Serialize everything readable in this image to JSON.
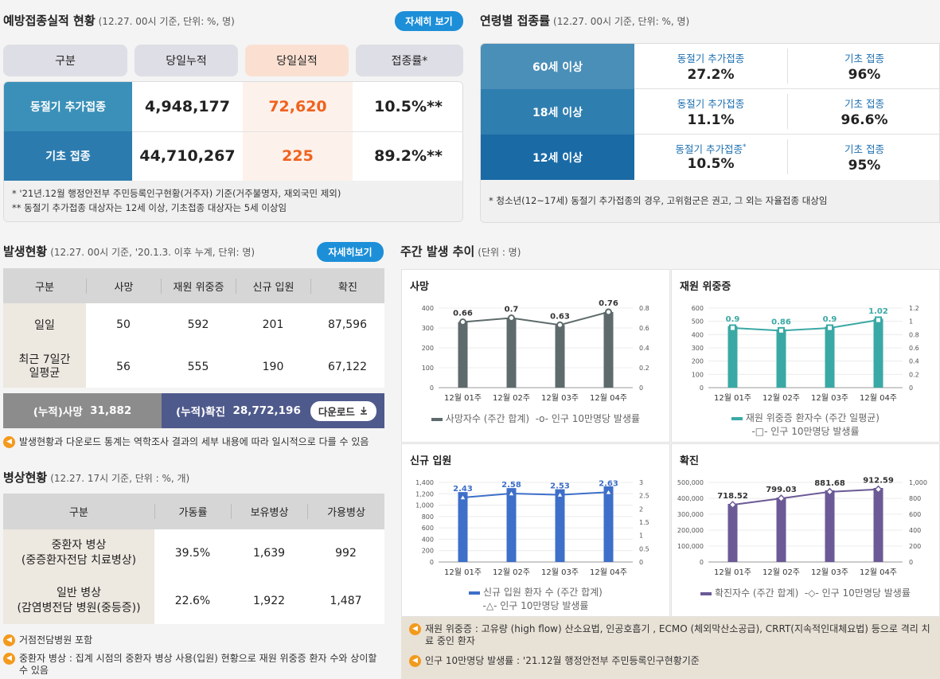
{
  "vacc": {
    "title": "예방접종실적 현황",
    "sub": "(12.27. 00시 기준, 단위: %, 명)",
    "detail_btn": "자세히 보기",
    "headers": [
      "구분",
      "당일누적",
      "당일실적",
      "접종률*"
    ],
    "rows": [
      {
        "label": "동절기 추가접종",
        "cum": "4,948,177",
        "today": "72,620",
        "rate": "10.5%**"
      },
      {
        "label": "기초 접종",
        "cum": "44,710,267",
        "today": "225",
        "rate": "89.2%**"
      }
    ],
    "notes": [
      "* '21년.12월 행정안전부 주민등록인구현황(거주자) 기준(거주불명자, 재외국민 제외)",
      "** 동절기 추가접종 대상자는 12세 이상, 기초접종 대상자는 5세 이상임"
    ]
  },
  "age": {
    "title": "연령별 접종률",
    "sub": "(12.27. 00시 기준, 단위: %, 명)",
    "rows": [
      {
        "label": "60세 이상",
        "a_label": "동절기 추가접종",
        "a_val": "27.2%",
        "b_label": "기초 접종",
        "b_val": "96%"
      },
      {
        "label": "18세 이상",
        "a_label": "동절기 추가접종",
        "a_val": "11.1%",
        "b_label": "기초 접종",
        "b_val": "96.6%"
      },
      {
        "label": "12세 이상",
        "a_label": "동절기 추가접종",
        "a_val": "10.5%",
        "b_label": "기초 접종",
        "b_val": "95%"
      }
    ],
    "star": "*",
    "note": "* 청소년(12~17세) 동절기 추가접종의 경우, 고위험군은 권고, 그 외는 자율접종 대상임"
  },
  "occur": {
    "title": "발생현황",
    "sub": "(12.27. 00시 기준, '20.1.3. 이후 누계, 단위: 명)",
    "detail_btn": "자세히보기",
    "headers": [
      "구분",
      "사망",
      "재원 위중증",
      "신규 입원",
      "확진"
    ],
    "rows": [
      {
        "label": "일일",
        "death": "50",
        "severe": "592",
        "adm": "201",
        "conf": "87,596"
      },
      {
        "label": "최근 7일간\n일평균",
        "death": "56",
        "severe": "555",
        "adm": "190",
        "conf": "67,122"
      }
    ],
    "cum_death_label": "(누적)사망",
    "cum_death": "31,882",
    "cum_conf_label": "(누적)확진",
    "cum_conf": "28,772,196",
    "download": "다운로드",
    "note": "발생현황과 다운로드 통계는 역학조사 결과의 세부 내용에 따라 일시적으로 다를 수 있음"
  },
  "bed": {
    "title": "병상현황",
    "sub": "(12.27. 17시 기준, 단위 : %, 개)",
    "headers": [
      "구분",
      "가동률",
      "보유병상",
      "가용병상"
    ],
    "rows": [
      {
        "label": "중환자 병상\n(중증환자전담 치료병상)",
        "rate": "39.5%",
        "own": "1,639",
        "avail": "992"
      },
      {
        "label": "일반 병상\n(감염병전담 병원(중등증))",
        "rate": "22.6%",
        "own": "1,922",
        "avail": "1,487"
      }
    ],
    "notes": [
      "거점전담병원 포함",
      "중환자 병상 : 집계 시점의 중환자 병상 사용(입원) 현황으로 재원 위중증 환자 수와 상이할 수 있음"
    ]
  },
  "weekly": {
    "title": "주간 발생 추이",
    "sub": "(단위 : 명)",
    "notes": [
      "재원 위중증 : 고유량 (high flow) 산소요법, 인공호흡기 , ECMO (체외막산소공급), CRRT(지속적인대체요법) 등으로 격리 치료 중인 환자",
      "인구 10만명당 발생률 : '21.12월 행정안전부 주민등록인구현황기준"
    ]
  },
  "chart_data": [
    {
      "type": "bar",
      "title": "사망",
      "categories": [
        "12월 01주",
        "12월 02주",
        "12월 03주",
        "12월 04주"
      ],
      "series": [
        {
          "name": "사망자수 (주간 합계)",
          "values": [
            330,
            350,
            315,
            380
          ]
        },
        {
          "name": "인구 10만명당 발생률",
          "values": [
            0.66,
            0.7,
            0.63,
            0.76
          ]
        }
      ],
      "yticks": [
        "400",
        "300",
        "200",
        "100",
        "0"
      ],
      "y2ticks": [
        "0.8",
        "0.6",
        "0.4",
        "0.2",
        "0"
      ],
      "ylim": [
        0,
        400
      ],
      "y2lim": [
        0,
        0.8
      ],
      "color": "#5e6a6b"
    },
    {
      "type": "bar",
      "title": "재원 위중증",
      "categories": [
        "12월 01주",
        "12월 02주",
        "12월 03주",
        "12월 04주"
      ],
      "series": [
        {
          "name": "재원 위중증 환자수 (주간 일평균)",
          "values": [
            465,
            440,
            460,
            520
          ]
        },
        {
          "name": "인구 10만명당 발생률",
          "values": [
            0.9,
            0.86,
            0.9,
            1.02
          ]
        }
      ],
      "yticks": [
        "600",
        "500",
        "400",
        "300",
        "200",
        "100",
        "0"
      ],
      "y2ticks": [
        "1.2",
        "1",
        "0.8",
        "0.6",
        "0.4",
        "0.2",
        "0"
      ],
      "ylim": [
        0,
        600
      ],
      "y2lim": [
        0,
        1.2
      ],
      "color": "#3aa9a5"
    },
    {
      "type": "bar",
      "title": "신규 입원",
      "categories": [
        "12월 01주",
        "12월 02주",
        "12월 03주",
        "12월 04주"
      ],
      "series": [
        {
          "name": "신규 입원 환자 수 (주간 합계)",
          "values": [
            1230,
            1300,
            1280,
            1330
          ]
        },
        {
          "name": "인구 10만명당 발생률",
          "values": [
            2.43,
            2.58,
            2.53,
            2.63
          ]
        }
      ],
      "yticks": [
        "1,400",
        "1,200",
        "1,000",
        "800",
        "600",
        "400",
        "200",
        "0"
      ],
      "y2ticks": [
        "3",
        "2.5",
        "2",
        "1.5",
        "1",
        "0.5",
        "0"
      ],
      "ylim": [
        0,
        1400
      ],
      "y2lim": [
        0,
        3
      ],
      "color": "#3e6fc9"
    },
    {
      "type": "bar",
      "title": "확진",
      "categories": [
        "12월 01주",
        "12월 02주",
        "12월 03주",
        "12월 04주"
      ],
      "series": [
        {
          "name": "확진자수 (주간 합계)",
          "values": [
            365000,
            405000,
            450000,
            465000
          ]
        },
        {
          "name": "인구 10만명당 발생률",
          "values": [
            718.52,
            799.03,
            881.68,
            912.59
          ]
        }
      ],
      "yticks": [
        "500,000",
        "400,000",
        "300,000",
        "200,000",
        "100,000",
        "0"
      ],
      "y2ticks": [
        "1,000",
        "800",
        "600",
        "400",
        "200",
        "0"
      ],
      "ylim": [
        0,
        500000
      ],
      "y2lim": [
        0,
        1000
      ],
      "color": "#6b5a96"
    }
  ]
}
